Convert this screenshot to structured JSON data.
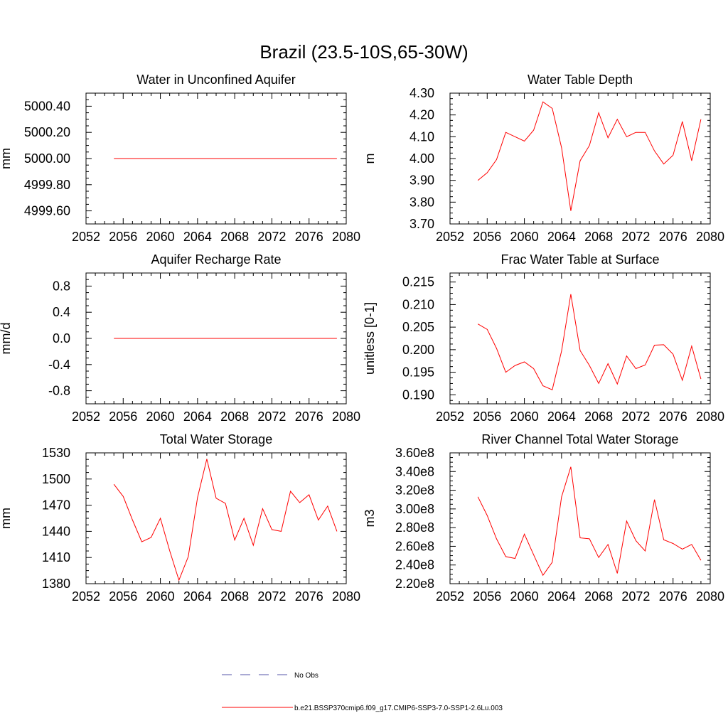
{
  "figure": {
    "title": "Brazil (23.5-10S,65-30W)",
    "series_color": "#ff0000",
    "obs_color": "#5555aa"
  },
  "legend": {
    "entries": [
      {
        "label": "No Obs",
        "style": "dashed",
        "color": "#5555aa"
      },
      {
        "label": "b.e21.BSSP370cmip6.f09_g17.CMIP6-SSP3-7.0-SSP1-2.6Lu.003",
        "style": "solid",
        "color": "#ff0000"
      }
    ]
  },
  "chart_data": [
    {
      "type": "line",
      "title": "Water in Unconfined Aquifer",
      "ylabel": "mm",
      "xlim": [
        2052,
        2080
      ],
      "ylim": [
        4999.5,
        5000.5
      ],
      "xticks": [
        "2052",
        "2056",
        "2060",
        "2064",
        "2068",
        "2072",
        "2076",
        "2080"
      ],
      "yticks": [
        "4999.60",
        "4999.80",
        "5000.00",
        "5000.20",
        "5000.40"
      ],
      "x": [
        2055,
        2056,
        2057,
        2058,
        2059,
        2060,
        2061,
        2062,
        2063,
        2064,
        2065,
        2066,
        2067,
        2068,
        2069,
        2070,
        2071,
        2072,
        2073,
        2074,
        2075,
        2076,
        2077,
        2078,
        2079
      ],
      "values": [
        5000,
        5000,
        5000,
        5000,
        5000,
        5000,
        5000,
        5000,
        5000,
        5000,
        5000,
        5000,
        5000,
        5000,
        5000,
        5000,
        5000,
        5000,
        5000,
        5000,
        5000,
        5000,
        5000,
        5000,
        5000
      ]
    },
    {
      "type": "line",
      "title": "Water Table Depth",
      "ylabel": "m",
      "xlim": [
        2052,
        2080
      ],
      "ylim": [
        3.7,
        4.3
      ],
      "xticks": [
        "2052",
        "2056",
        "2060",
        "2064",
        "2068",
        "2072",
        "2076",
        "2080"
      ],
      "yticks": [
        "3.70",
        "3.80",
        "3.90",
        "4.00",
        "4.10",
        "4.20",
        "4.30"
      ],
      "x": [
        2055,
        2056,
        2057,
        2058,
        2059,
        2060,
        2061,
        2062,
        2063,
        2064,
        2065,
        2066,
        2067,
        2068,
        2069,
        2070,
        2071,
        2072,
        2073,
        2074,
        2075,
        2076,
        2077,
        2078,
        2079
      ],
      "values": [
        3.9,
        3.935,
        3.995,
        4.12,
        4.1,
        4.08,
        4.13,
        4.26,
        4.23,
        4.05,
        3.76,
        3.99,
        4.06,
        4.21,
        4.095,
        4.18,
        4.1,
        4.12,
        4.12,
        4.035,
        3.975,
        4.015,
        4.17,
        3.99,
        4.18
      ]
    },
    {
      "type": "line",
      "title": "Aquifer Recharge Rate",
      "ylabel": "mm/d",
      "xlim": [
        2052,
        2080
      ],
      "ylim": [
        -1.0,
        1.0
      ],
      "xticks": [
        "2052",
        "2056",
        "2060",
        "2064",
        "2068",
        "2072",
        "2076",
        "2080"
      ],
      "yticks": [
        "-0.8",
        "-0.4",
        "0.0",
        "0.4",
        "0.8"
      ],
      "x": [
        2055,
        2056,
        2057,
        2058,
        2059,
        2060,
        2061,
        2062,
        2063,
        2064,
        2065,
        2066,
        2067,
        2068,
        2069,
        2070,
        2071,
        2072,
        2073,
        2074,
        2075,
        2076,
        2077,
        2078,
        2079
      ],
      "values": [
        0,
        0,
        0,
        0,
        0,
        0,
        0,
        0,
        0,
        0,
        0,
        0,
        0,
        0,
        0,
        0,
        0,
        0,
        0,
        0,
        0,
        0,
        0,
        0,
        0
      ]
    },
    {
      "type": "line",
      "title": "Frac Water Table at Surface",
      "ylabel": "unitless [0-1]",
      "xlim": [
        2052,
        2080
      ],
      "ylim": [
        0.188,
        0.217
      ],
      "xticks": [
        "2052",
        "2056",
        "2060",
        "2064",
        "2068",
        "2072",
        "2076",
        "2080"
      ],
      "yticks": [
        "0.190",
        "0.195",
        "0.200",
        "0.205",
        "0.210",
        "0.215"
      ],
      "x": [
        2055,
        2056,
        2057,
        2058,
        2059,
        2060,
        2061,
        2062,
        2063,
        2064,
        2065,
        2066,
        2067,
        2068,
        2069,
        2070,
        2071,
        2072,
        2073,
        2074,
        2075,
        2076,
        2077,
        2078,
        2079
      ],
      "values": [
        0.2057,
        0.2045,
        0.2003,
        0.195,
        0.1965,
        0.1973,
        0.1958,
        0.192,
        0.1911,
        0.1997,
        0.2123,
        0.1998,
        0.1965,
        0.1925,
        0.1969,
        0.1924,
        0.1986,
        0.1958,
        0.1966,
        0.201,
        0.2011,
        0.199,
        0.1932,
        0.2008,
        0.1935
      ]
    },
    {
      "type": "line",
      "title": "Total Water Storage",
      "ylabel": "mm",
      "xlim": [
        2052,
        2080
      ],
      "ylim": [
        1380,
        1530
      ],
      "xticks": [
        "2052",
        "2056",
        "2060",
        "2064",
        "2068",
        "2072",
        "2076",
        "2080"
      ],
      "yticks": [
        "1380",
        "1410",
        "1440",
        "1470",
        "1500",
        "1530"
      ],
      "x": [
        2055,
        2056,
        2057,
        2058,
        2059,
        2060,
        2061,
        2062,
        2063,
        2064,
        2065,
        2066,
        2067,
        2068,
        2069,
        2070,
        2071,
        2072,
        2073,
        2074,
        2075,
        2076,
        2077,
        2078,
        2079
      ],
      "values": [
        1494,
        1480,
        1453,
        1428,
        1433,
        1455,
        1418,
        1384,
        1411,
        1479,
        1523,
        1478,
        1472,
        1430,
        1455,
        1424,
        1466,
        1442,
        1440,
        1486,
        1473,
        1482,
        1453,
        1469,
        1440
      ]
    },
    {
      "type": "line",
      "title": "River Channel Total Water Storage",
      "ylabel": "m3",
      "xlim": [
        2052,
        2080
      ],
      "ylim": [
        220000000,
        360000000
      ],
      "xticks": [
        "2052",
        "2056",
        "2060",
        "2064",
        "2068",
        "2072",
        "2076",
        "2080"
      ],
      "yticks": [
        "2.20e8",
        "2.40e8",
        "2.60e8",
        "2.80e8",
        "3.00e8",
        "3.20e8",
        "3.40e8",
        "3.60e8"
      ],
      "x": [
        2055,
        2056,
        2057,
        2058,
        2059,
        2060,
        2061,
        2062,
        2063,
        2064,
        2065,
        2066,
        2067,
        2068,
        2069,
        2070,
        2071,
        2072,
        2073,
        2074,
        2075,
        2076,
        2077,
        2078,
        2079
      ],
      "values": [
        313000000,
        293000000,
        268000000,
        249000000,
        247000000,
        273000000,
        251000000,
        229000000,
        243000000,
        313000000,
        345000000,
        269000000,
        268000000,
        248000000,
        262000000,
        231000000,
        287000000,
        266000000,
        255000000,
        310000000,
        267000000,
        263000000,
        257000000,
        262000000,
        245000000
      ]
    }
  ]
}
